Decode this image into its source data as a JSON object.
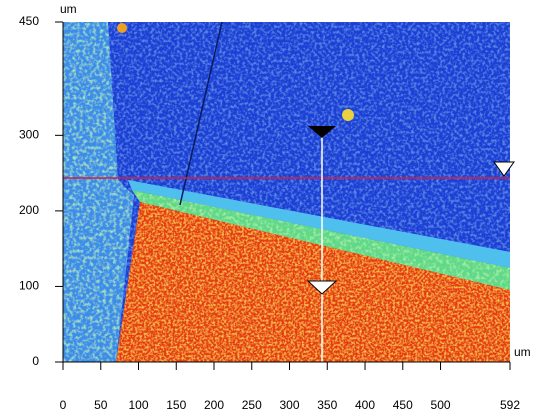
{
  "chart_data": {
    "type": "heatmap",
    "xlabel": "um",
    "ylabel": "um",
    "xlim": [
      0,
      592
    ],
    "ylim": [
      0,
      450
    ],
    "xticks": [
      0,
      50,
      100,
      150,
      200,
      250,
      300,
      350,
      400,
      450,
      500,
      592
    ],
    "yticks": [
      0,
      100,
      200,
      300,
      450
    ]
  }
}
